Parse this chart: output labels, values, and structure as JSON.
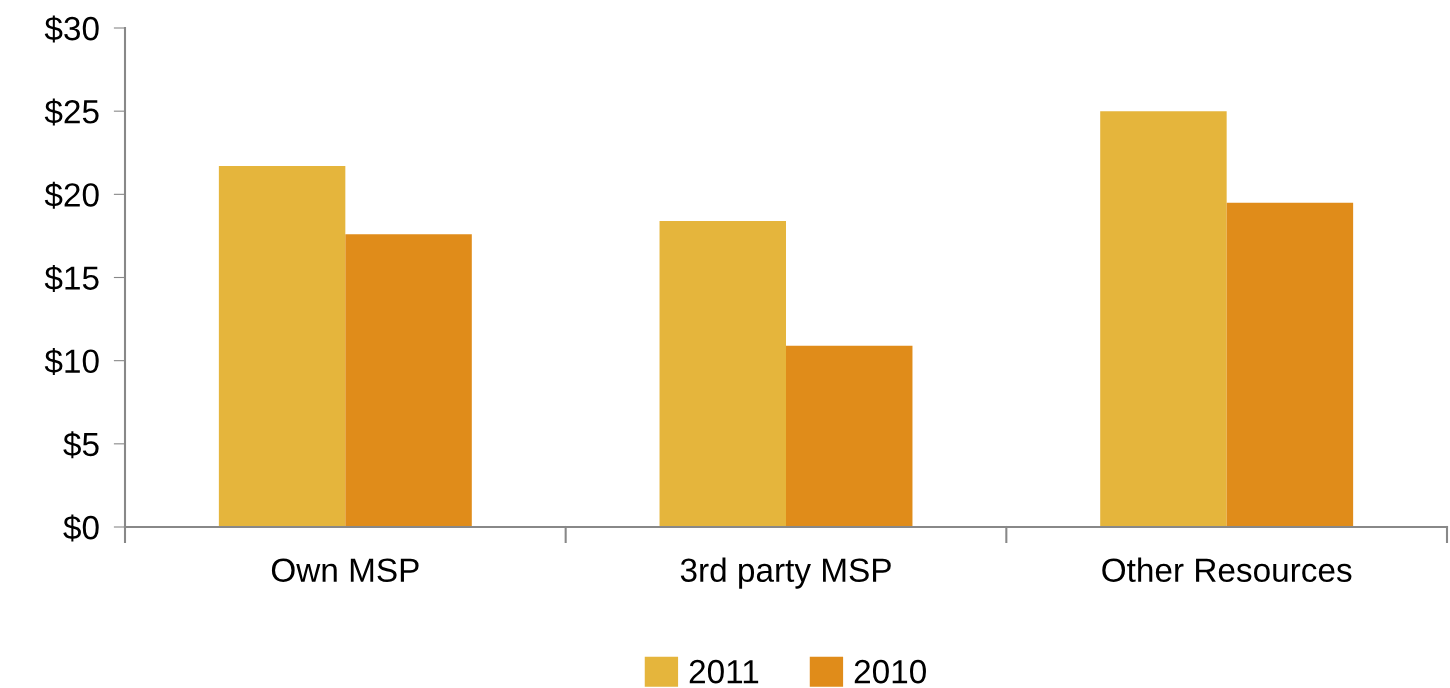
{
  "chart_data": {
    "type": "bar",
    "categories": [
      "Own MSP",
      "3rd party MSP",
      "Other Resources"
    ],
    "series": [
      {
        "name": "2011",
        "color": "#e5b53c",
        "values": [
          21.7,
          18.4,
          25.0
        ]
      },
      {
        "name": "2010",
        "color": "#e08c1a",
        "values": [
          17.6,
          10.9,
          19.5
        ]
      }
    ],
    "ylim": [
      0,
      30
    ],
    "yticks": [
      {
        "value": 0,
        "label": "$0"
      },
      {
        "value": 5,
        "label": "$5"
      },
      {
        "value": 10,
        "label": "$10"
      },
      {
        "value": 15,
        "label": "$15"
      },
      {
        "value": 20,
        "label": "$20"
      },
      {
        "value": 25,
        "label": "$25"
      },
      {
        "value": 30,
        "label": "$30"
      }
    ],
    "grid": false,
    "legend": "bottom"
  }
}
